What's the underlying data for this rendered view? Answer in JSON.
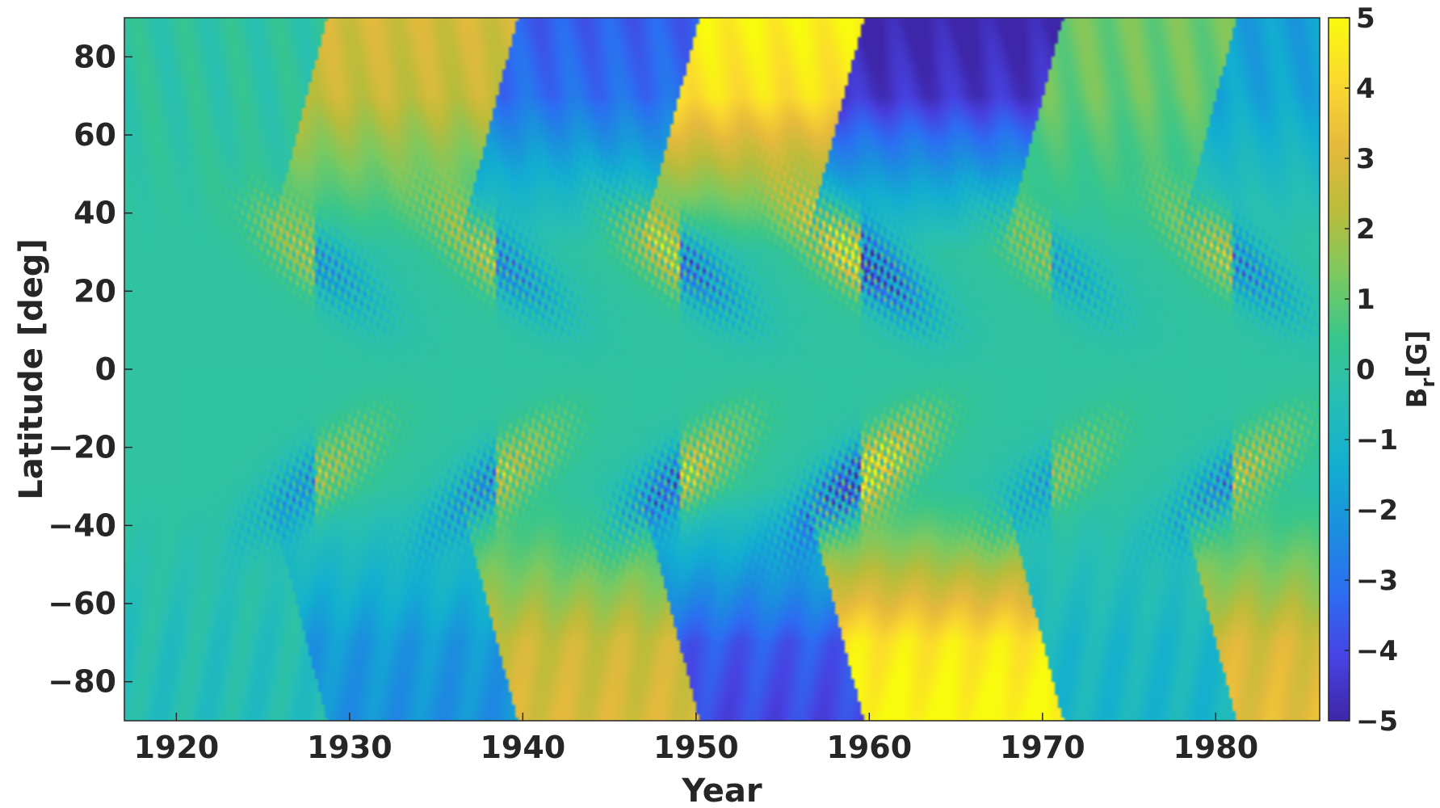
{
  "chart_data": {
    "type": "heatmap",
    "title": "",
    "xlabel": "Year",
    "ylabel": "Latitude [deg]",
    "xlim": [
      1917,
      1986
    ],
    "ylim": [
      -90,
      90
    ],
    "x_ticks": [
      1920,
      1930,
      1940,
      1950,
      1960,
      1970,
      1980
    ],
    "y_ticks": [
      80,
      60,
      40,
      20,
      0,
      -20,
      -40,
      -60,
      -80
    ],
    "colorbar": {
      "label_main": "B",
      "label_sub": "r",
      "label_unit": "[G]",
      "range": [
        -5,
        5
      ],
      "ticks": [
        5,
        4,
        3,
        2,
        1,
        0,
        -1,
        -2,
        -3,
        -4,
        -5
      ],
      "colormap": "parula",
      "colormap_stops": [
        "#3E26A8",
        "#4743E3",
        "#2C6EF2",
        "#1B8FDE",
        "#12AFD0",
        "#27BEB6",
        "#38C68B",
        "#7EC95F",
        "#BBBC3B",
        "#E6BA3C",
        "#FBD92F",
        "#F9FB0E"
      ]
    },
    "bands": [
      {
        "years": [
          1917,
          1925.5
        ],
        "north_polar": 0,
        "south_polar": -0.5
      },
      {
        "years": [
          1925.5,
          1936.5
        ],
        "north_polar": 2.8,
        "south_polar": -2.2
      },
      {
        "years": [
          1936.5,
          1947
        ],
        "north_polar": -3.5,
        "south_polar": 2.9
      },
      {
        "years": [
          1947,
          1956.5
        ],
        "north_polar": 4.8,
        "south_polar": -4.0
      },
      {
        "years": [
          1956.5,
          1968
        ],
        "north_polar": -5.0,
        "south_polar": 5.0
      },
      {
        "years": [
          1968,
          1978
        ],
        "north_polar": 1.2,
        "south_polar": -1.0
      },
      {
        "years": [
          1978,
          1986
        ],
        "north_polar": -1.8,
        "south_polar": 3.2
      }
    ],
    "activity_maxima": [
      {
        "year": 1928,
        "strength": 2.5
      },
      {
        "year": 1938.5,
        "strength": 3.0
      },
      {
        "year": 1949,
        "strength": 3.6
      },
      {
        "year": 1959.5,
        "strength": 5.0
      },
      {
        "year": 1970.5,
        "strength": 2.0
      },
      {
        "year": 1981,
        "strength": 3.0
      }
    ]
  }
}
